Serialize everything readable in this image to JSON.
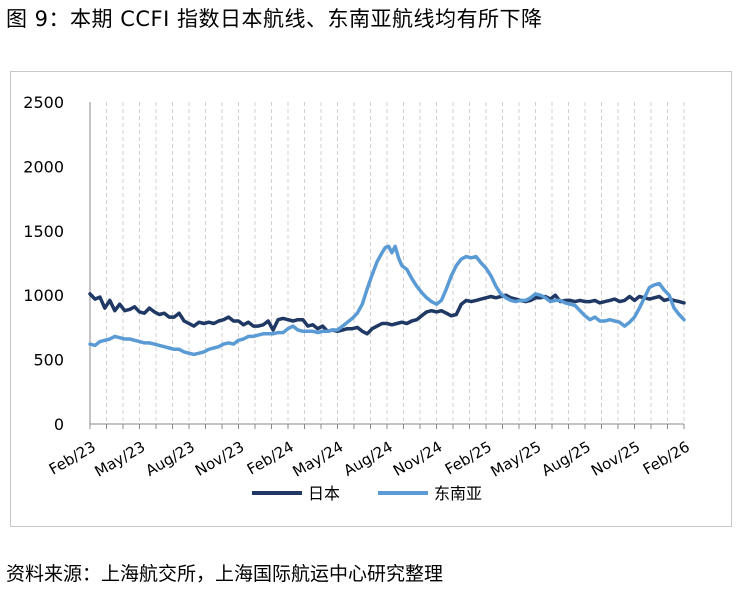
{
  "title": "图 9：本期 CCFI 指数日本航线、东南亚航线均有所下降",
  "source": "资料来源：上海航交所，上海国际航运中心研究整理",
  "chart_data": {
    "type": "line",
    "x_ticks": [
      "Feb/23",
      "May/23",
      "Aug/23",
      "Nov/23",
      "Feb/24",
      "May/24",
      "Aug/24",
      "Nov/24",
      "Feb/25",
      "May/25",
      "Aug/25",
      "Nov/25",
      "Feb/26"
    ],
    "y_ticks": [
      "0",
      "500",
      "1000",
      "1500",
      "2000",
      "2500"
    ],
    "ylim": [
      0,
      2500
    ],
    "xlim": [
      0,
      36
    ],
    "grid": "vertical dashed",
    "legend": "bottom-center",
    "series": [
      {
        "name": "日本",
        "color": "#1f3864",
        "points": [
          [
            0,
            1010
          ],
          [
            0.3,
            970
          ],
          [
            0.6,
            985
          ],
          [
            0.9,
            900
          ],
          [
            1.2,
            960
          ],
          [
            1.5,
            880
          ],
          [
            1.8,
            930
          ],
          [
            2.1,
            880
          ],
          [
            2.4,
            890
          ],
          [
            2.7,
            910
          ],
          [
            3,
            870
          ],
          [
            3.3,
            860
          ],
          [
            3.6,
            900
          ],
          [
            3.9,
            870
          ],
          [
            4.2,
            850
          ],
          [
            4.5,
            860
          ],
          [
            4.8,
            830
          ],
          [
            5.1,
            830
          ],
          [
            5.4,
            860
          ],
          [
            5.7,
            800
          ],
          [
            6,
            780
          ],
          [
            6.3,
            760
          ],
          [
            6.6,
            790
          ],
          [
            6.9,
            780
          ],
          [
            7.2,
            790
          ],
          [
            7.5,
            780
          ],
          [
            7.8,
            800
          ],
          [
            8.1,
            810
          ],
          [
            8.4,
            830
          ],
          [
            8.7,
            800
          ],
          [
            9,
            800
          ],
          [
            9.3,
            770
          ],
          [
            9.6,
            790
          ],
          [
            9.9,
            760
          ],
          [
            10.2,
            760
          ],
          [
            10.5,
            770
          ],
          [
            10.8,
            800
          ],
          [
            11.1,
            730
          ],
          [
            11.4,
            810
          ],
          [
            11.7,
            820
          ],
          [
            12,
            810
          ],
          [
            12.3,
            800
          ],
          [
            12.6,
            810
          ],
          [
            12.9,
            810
          ],
          [
            13.2,
            760
          ],
          [
            13.5,
            770
          ],
          [
            13.8,
            740
          ],
          [
            14.1,
            760
          ],
          [
            14.4,
            720
          ],
          [
            14.7,
            730
          ],
          [
            15,
            720
          ],
          [
            15.3,
            730
          ],
          [
            15.6,
            740
          ],
          [
            15.9,
            740
          ],
          [
            16.2,
            750
          ],
          [
            16.5,
            720
          ],
          [
            16.8,
            700
          ],
          [
            17.1,
            740
          ],
          [
            17.4,
            760
          ],
          [
            17.7,
            780
          ],
          [
            18,
            780
          ],
          [
            18.3,
            770
          ],
          [
            18.6,
            780
          ],
          [
            18.9,
            790
          ],
          [
            19.2,
            780
          ],
          [
            19.5,
            800
          ],
          [
            19.8,
            810
          ],
          [
            20.1,
            840
          ],
          [
            20.4,
            870
          ],
          [
            20.7,
            880
          ],
          [
            21,
            870
          ],
          [
            21.3,
            880
          ],
          [
            21.6,
            860
          ],
          [
            21.9,
            840
          ],
          [
            22.2,
            850
          ],
          [
            22.5,
            930
          ],
          [
            22.8,
            960
          ],
          [
            23.1,
            950
          ],
          [
            23.4,
            960
          ],
          [
            23.7,
            970
          ],
          [
            24,
            980
          ],
          [
            24.3,
            990
          ],
          [
            24.6,
            980
          ],
          [
            24.9,
            990
          ],
          [
            25.2,
            1000
          ],
          [
            25.5,
            980
          ],
          [
            25.8,
            970
          ],
          [
            26.1,
            960
          ],
          [
            26.4,
            950
          ],
          [
            26.7,
            960
          ],
          [
            27,
            980
          ],
          [
            27.3,
            980
          ],
          [
            27.6,
            990
          ],
          [
            27.9,
            970
          ],
          [
            28.2,
            1000
          ],
          [
            28.5,
            950
          ],
          [
            28.8,
            960
          ],
          [
            29.1,
            960
          ],
          [
            29.4,
            950
          ],
          [
            29.7,
            960
          ],
          [
            30,
            950
          ],
          [
            30.3,
            950
          ],
          [
            30.6,
            960
          ],
          [
            30.9,
            940
          ],
          [
            31.2,
            950
          ],
          [
            31.5,
            960
          ],
          [
            31.8,
            970
          ],
          [
            32.1,
            950
          ],
          [
            32.4,
            960
          ],
          [
            32.7,
            990
          ],
          [
            33,
            960
          ],
          [
            33.3,
            990
          ],
          [
            33.6,
            980
          ],
          [
            33.9,
            970
          ],
          [
            34.2,
            980
          ],
          [
            34.5,
            990
          ],
          [
            34.8,
            960
          ],
          [
            35.1,
            970
          ],
          [
            35.4,
            960
          ],
          [
            35.7,
            950
          ],
          [
            36,
            940
          ]
        ]
      },
      {
        "name": "东南亚",
        "color": "#5b9bd5",
        "points": [
          [
            0,
            620
          ],
          [
            0.3,
            610
          ],
          [
            0.6,
            640
          ],
          [
            0.9,
            650
          ],
          [
            1.2,
            660
          ],
          [
            1.5,
            680
          ],
          [
            1.8,
            670
          ],
          [
            2.1,
            660
          ],
          [
            2.4,
            660
          ],
          [
            2.7,
            650
          ],
          [
            3,
            640
          ],
          [
            3.3,
            630
          ],
          [
            3.6,
            630
          ],
          [
            3.9,
            620
          ],
          [
            4.2,
            610
          ],
          [
            4.5,
            600
          ],
          [
            4.8,
            590
          ],
          [
            5.1,
            580
          ],
          [
            5.4,
            580
          ],
          [
            5.7,
            560
          ],
          [
            6,
            550
          ],
          [
            6.3,
            540
          ],
          [
            6.6,
            550
          ],
          [
            6.9,
            560
          ],
          [
            7.2,
            580
          ],
          [
            7.5,
            590
          ],
          [
            7.8,
            600
          ],
          [
            8.1,
            620
          ],
          [
            8.4,
            630
          ],
          [
            8.7,
            620
          ],
          [
            9,
            650
          ],
          [
            9.3,
            660
          ],
          [
            9.6,
            680
          ],
          [
            9.9,
            680
          ],
          [
            10.2,
            690
          ],
          [
            10.5,
            700
          ],
          [
            10.8,
            700
          ],
          [
            11.1,
            700
          ],
          [
            11.4,
            710
          ],
          [
            11.7,
            710
          ],
          [
            12,
            740
          ],
          [
            12.3,
            760
          ],
          [
            12.6,
            730
          ],
          [
            12.9,
            720
          ],
          [
            13.2,
            720
          ],
          [
            13.5,
            720
          ],
          [
            13.8,
            710
          ],
          [
            14.1,
            720
          ],
          [
            14.4,
            720
          ],
          [
            14.7,
            730
          ],
          [
            15,
            730
          ],
          [
            15.3,
            760
          ],
          [
            15.6,
            790
          ],
          [
            15.9,
            820
          ],
          [
            16.2,
            860
          ],
          [
            16.5,
            930
          ],
          [
            16.8,
            1050
          ],
          [
            17.1,
            1160
          ],
          [
            17.4,
            1260
          ],
          [
            17.7,
            1330
          ],
          [
            17.9,
            1370
          ],
          [
            18.1,
            1380
          ],
          [
            18.3,
            1330
          ],
          [
            18.5,
            1380
          ],
          [
            18.7,
            1290
          ],
          [
            18.9,
            1230
          ],
          [
            19.2,
            1200
          ],
          [
            19.5,
            1130
          ],
          [
            19.8,
            1070
          ],
          [
            20.1,
            1020
          ],
          [
            20.4,
            980
          ],
          [
            20.7,
            950
          ],
          [
            21,
            930
          ],
          [
            21.3,
            960
          ],
          [
            21.6,
            1050
          ],
          [
            21.9,
            1150
          ],
          [
            22.2,
            1230
          ],
          [
            22.5,
            1280
          ],
          [
            22.8,
            1300
          ],
          [
            23.1,
            1290
          ],
          [
            23.4,
            1300
          ],
          [
            23.7,
            1250
          ],
          [
            24,
            1210
          ],
          [
            24.3,
            1150
          ],
          [
            24.6,
            1070
          ],
          [
            24.9,
            1010
          ],
          [
            25.2,
            980
          ],
          [
            25.5,
            960
          ],
          [
            25.8,
            950
          ],
          [
            26.1,
            960
          ],
          [
            26.4,
            960
          ],
          [
            26.7,
            980
          ],
          [
            27,
            1010
          ],
          [
            27.3,
            1000
          ],
          [
            27.6,
            980
          ],
          [
            27.9,
            950
          ],
          [
            28.2,
            960
          ],
          [
            28.5,
            960
          ],
          [
            28.8,
            940
          ],
          [
            29.1,
            930
          ],
          [
            29.4,
            920
          ],
          [
            29.7,
            880
          ],
          [
            30,
            840
          ],
          [
            30.3,
            810
          ],
          [
            30.6,
            830
          ],
          [
            30.9,
            800
          ],
          [
            31.2,
            800
          ],
          [
            31.5,
            810
          ],
          [
            31.8,
            800
          ],
          [
            32.1,
            790
          ],
          [
            32.4,
            760
          ],
          [
            32.7,
            790
          ],
          [
            33,
            830
          ],
          [
            33.3,
            900
          ],
          [
            33.6,
            980
          ],
          [
            33.9,
            1060
          ],
          [
            34.2,
            1080
          ],
          [
            34.5,
            1090
          ],
          [
            34.8,
            1040
          ],
          [
            35.1,
            1000
          ],
          [
            35.4,
            900
          ],
          [
            35.7,
            850
          ],
          [
            36,
            810
          ]
        ]
      }
    ]
  }
}
